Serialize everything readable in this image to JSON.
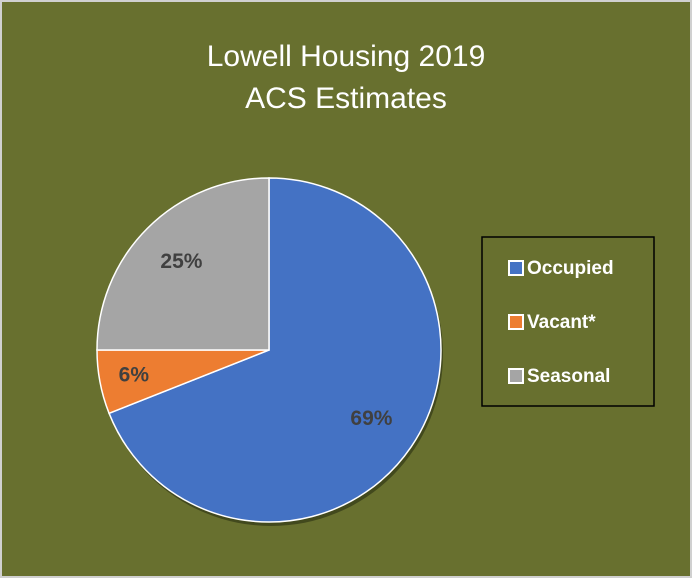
{
  "chart_data": {
    "type": "pie",
    "title": [
      "Lowell Housing 2019",
      "ACS Estimates"
    ],
    "categories": [
      "Occupied",
      "Vacant*",
      "Seasonal"
    ],
    "values": [
      69,
      6,
      25
    ],
    "value_labels": [
      "69%",
      "6%",
      "25%"
    ],
    "colors": [
      "#4472c4",
      "#ed7d31",
      "#a5a5a5"
    ],
    "legend": "right"
  }
}
